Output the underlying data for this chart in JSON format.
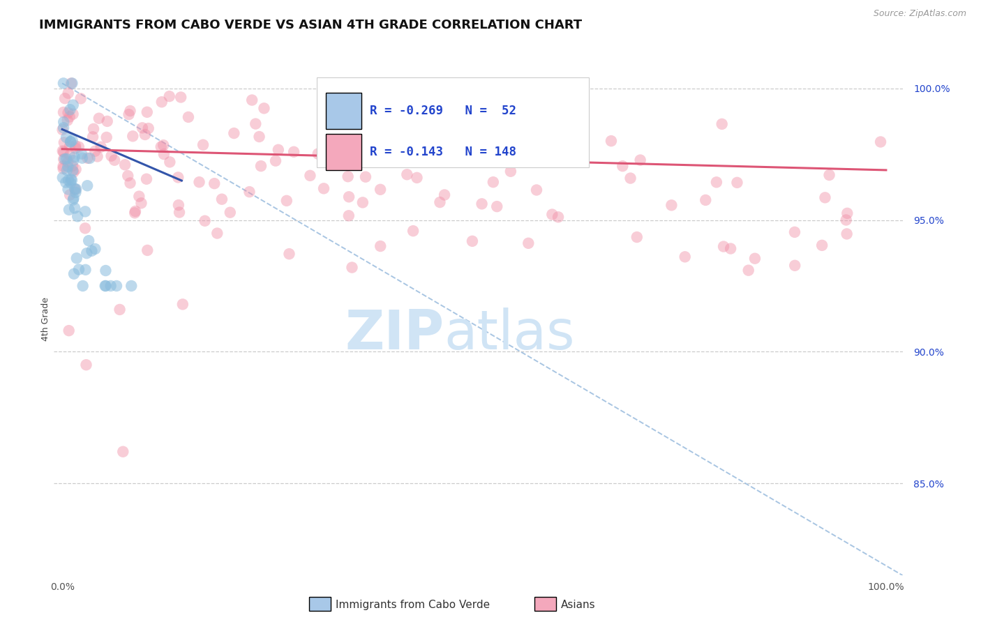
{
  "title": "IMMIGRANTS FROM CABO VERDE VS ASIAN 4TH GRADE CORRELATION CHART",
  "source_text": "Source: ZipAtlas.com",
  "ylabel": "4th Grade",
  "x_tick_labels": [
    "0.0%",
    "100.0%"
  ],
  "y_tick_labels": [
    "85.0%",
    "90.0%",
    "95.0%",
    "100.0%"
  ],
  "y_tick_values": [
    0.85,
    0.9,
    0.95,
    1.0
  ],
  "legend_labels": [
    "Immigrants from Cabo Verde",
    "Asians"
  ],
  "legend_box_colors": [
    "#a8c8e8",
    "#f4a8bc"
  ],
  "r_blue": -0.269,
  "n_blue": 52,
  "r_pink": -0.143,
  "n_pink": 148,
  "blue_scatter_color": "#88bbdd",
  "pink_scatter_color": "#f090a8",
  "blue_line_color": "#3355aa",
  "pink_line_color": "#dd5575",
  "dashed_line_color": "#99bbdd",
  "watermark_color": "#d0e4f5",
  "background_color": "#ffffff",
  "title_fontsize": 13,
  "axis_label_fontsize": 9,
  "tick_fontsize": 10,
  "legend_r_n_color": "#2244cc"
}
